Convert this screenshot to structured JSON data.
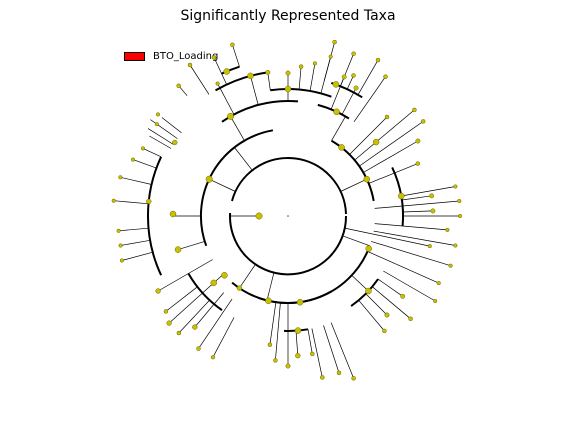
{
  "title": "Significantly Represented Taxa",
  "legend": {
    "label": "BTO_Loading",
    "color": "#ff0000"
  },
  "colors": {
    "node_fill": "#c8c000",
    "node_stroke": "#6b6500",
    "edge": "#000000"
  }
}
